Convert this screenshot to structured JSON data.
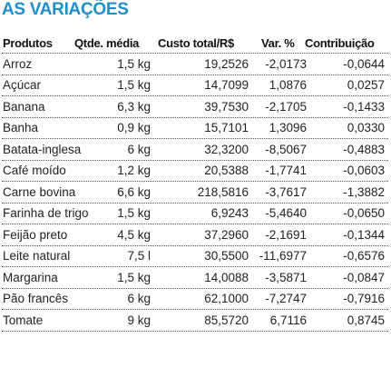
{
  "title": "AS VARIAÇÕES",
  "headers": {
    "product": "Produtos",
    "qty": "Qtde. média",
    "cost": "Custo total/R$",
    "var": "Var. %",
    "contrib": "Contribuição"
  },
  "rows": [
    {
      "product": "Arroz",
      "qty": "1,5 kg",
      "cost": "19,2526",
      "var": "-2,0173",
      "contrib": "-0,0644"
    },
    {
      "product": "Açúcar",
      "qty": "1,5 kg",
      "cost": "14,7099",
      "var": "1,0876",
      "contrib": "0,0257"
    },
    {
      "product": "Banana",
      "qty": "6,3 kg",
      "cost": "39,7530",
      "var": "-2,1705",
      "contrib": "-0,1433"
    },
    {
      "product": "Banha",
      "qty": "0,9 kg",
      "cost": "15,7101",
      "var": "1,3096",
      "contrib": "0,0330"
    },
    {
      "product": "Batata-inglesa",
      "qty": "6 kg",
      "cost": "32,3200",
      "var": "-8,5067",
      "contrib": "-0,4883"
    },
    {
      "product": "Café moído",
      "qty": "1,2 kg",
      "cost": "20,5388",
      "var": "-1,7741",
      "contrib": "-0,0603"
    },
    {
      "product": "Carne bovina",
      "qty": "6,6 kg",
      "cost": "218,5816",
      "var": "-3,7617",
      "contrib": "-1,3882"
    },
    {
      "product": "Farinha de trigo",
      "qty": "1,5 kg",
      "cost": "6,9243",
      "var": "-5,4640",
      "contrib": "-0,0650"
    },
    {
      "product": "Feijão preto",
      "qty": "4,5 kg",
      "cost": "37,2960",
      "var": "-2,1691",
      "contrib": "-0,1344"
    },
    {
      "product": "Leite natural",
      "qty": "7,5 l",
      "cost": "30,5500",
      "var": "-11,6977",
      "contrib": "-0,6576"
    },
    {
      "product": "Margarina",
      "qty": "1,5 kg",
      "cost": "14,0088",
      "var": "-3,5871",
      "contrib": "-0,0847"
    },
    {
      "product": "Pão francês",
      "qty": "6 kg",
      "cost": "62,1000",
      "var": "-7,2747",
      "contrib": "-0,7916"
    },
    {
      "product": "Tomate",
      "qty": "9 kg",
      "cost": "85,5720",
      "var": "6,7116",
      "contrib": "0,8745"
    }
  ]
}
